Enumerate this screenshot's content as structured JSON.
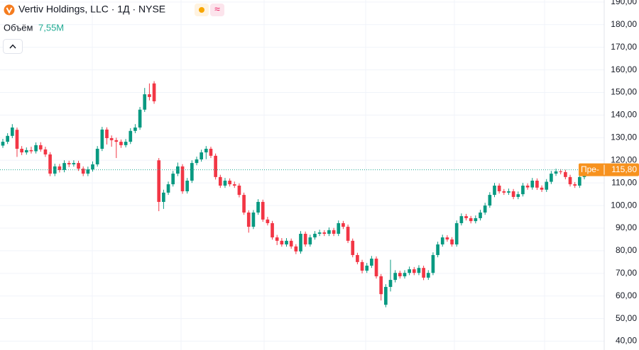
{
  "chart_data": {
    "type": "candlestick",
    "title": "Vertiv Holdings, LLC · 1Д · NYSE",
    "volume_label": "Объём",
    "volume_value": "7,55M",
    "last_price_tag": "Пре-",
    "last_price": {
      "value": 115.8,
      "label": "115,80"
    },
    "up_color": "#089981",
    "down_color": "#f23645",
    "ylim": [
      36.1,
      190.9
    ],
    "yticks": [
      {
        "value": 190,
        "label": "190,00"
      },
      {
        "value": 180,
        "label": "180,00"
      },
      {
        "value": 170,
        "label": "170,00"
      },
      {
        "value": 160,
        "label": "160,00"
      },
      {
        "value": 150,
        "label": "150,00"
      },
      {
        "value": 140,
        "label": "140,00"
      },
      {
        "value": 130,
        "label": "130,00"
      },
      {
        "value": 120,
        "label": "120,00"
      },
      {
        "value": 110,
        "label": "110,00"
      },
      {
        "value": 100,
        "label": "100,00"
      },
      {
        "value": 90,
        "label": "90,00"
      },
      {
        "value": 80,
        "label": "80,00"
      },
      {
        "value": 70,
        "label": "70,00"
      },
      {
        "value": 60,
        "label": "60,00"
      },
      {
        "value": 50,
        "label": "50,00"
      },
      {
        "value": 40,
        "label": "40,00"
      }
    ],
    "grid": true,
    "open": [
      126.5,
      128.2,
      130.8,
      133.5,
      125.1,
      123.5,
      124.5,
      124.0,
      126.7,
      124.8,
      122.6,
      114.1,
      117.3,
      115.7,
      118.8,
      118.2,
      118.8,
      116.3,
      114.1,
      116.0,
      118.2,
      125.1,
      133.6,
      129.8,
      128.9,
      128.2,
      126.7,
      128.2,
      133.0,
      134.5,
      142.4,
      149.2,
      154.0,
      120.0,
      101.6,
      105.7,
      109.4,
      114.1,
      117.3,
      106.3,
      111.0,
      118.8,
      120.4,
      123.5,
      125.1,
      122.0,
      112.6,
      108.8,
      111.0,
      109.4,
      108.8,
      104.7,
      96.9,
      90.6,
      96.9,
      101.6,
      93.8,
      92.2,
      85.9,
      84.4,
      82.8,
      84.4,
      81.9,
      79.7,
      87.5,
      82.8,
      85.9,
      87.5,
      88.1,
      87.5,
      89.1,
      87.5,
      92.2,
      90.6,
      84.4,
      78.1,
      75.0,
      71.2,
      73.4,
      76.5,
      68.7,
      56.1,
      64.0,
      67.1,
      70.2,
      68.7,
      70.2,
      71.8,
      70.2,
      72.4,
      68.1,
      70.2,
      78.1,
      82.8,
      85.9,
      85.0,
      82.8,
      92.2,
      95.3,
      94.4,
      93.1,
      94.4,
      96.9,
      100.0,
      104.7,
      108.8,
      106.3,
      105.7,
      106.3,
      103.8,
      105.0,
      108.8,
      108.0,
      111.0,
      107.9,
      107.0,
      110.5,
      114.1,
      115.1,
      114.8,
      112.6,
      109.4,
      108.8,
      112.6
    ],
    "high": [
      129.5,
      132,
      136,
      134.5,
      126.3,
      125.7,
      126,
      127.9,
      128,
      126,
      123.6,
      118.5,
      118.4,
      120,
      119.8,
      120,
      119.8,
      117.3,
      117.2,
      119.5,
      126.3,
      134.8,
      134.6,
      131,
      130,
      129.2,
      129.4,
      134.2,
      136,
      143.6,
      152,
      154,
      155,
      121,
      107,
      110.6,
      115.3,
      119,
      118.3,
      112.2,
      120,
      121.6,
      124.7,
      126.3,
      126,
      123,
      113.6,
      112.2,
      112,
      110.6,
      109.8,
      105.7,
      97.9,
      98,
      102.8,
      102.6,
      95,
      93.2,
      87,
      85.6,
      85.6,
      85.4,
      82.9,
      88.7,
      88.5,
      87.1,
      88.7,
      89.3,
      89.1,
      90.3,
      90.1,
      93.4,
      93.2,
      91.6,
      85.4,
      79.1,
      76,
      74.6,
      77.7,
      77.5,
      69.7,
      65.2,
      76,
      71.4,
      71.2,
      71.4,
      73,
      72.8,
      73.6,
      73.4,
      71.4,
      79.3,
      84,
      87.1,
      86.9,
      86,
      93.4,
      96.5,
      96.3,
      95.4,
      95.6,
      98.1,
      101.2,
      105.9,
      110,
      109.8,
      107.3,
      107.5,
      107.3,
      106.2,
      110,
      109.8,
      112.2,
      112,
      108.9,
      111.7,
      115.3,
      116.3,
      116.1,
      115.8,
      113.6,
      110.4,
      113.8,
      117
    ],
    "low": [
      125.5,
      127.2,
      129.8,
      121.5,
      122.3,
      122.5,
      123,
      123,
      123.8,
      121.5,
      113,
      113,
      114.6,
      114.7,
      117,
      117.2,
      115.3,
      113,
      113,
      115,
      117.2,
      124.1,
      127,
      126,
      121,
      125.5,
      125.7,
      127.2,
      132,
      133.5,
      141.4,
      146.5,
      145,
      97.5,
      98.5,
      104.7,
      108.4,
      113,
      105.2,
      105.3,
      110,
      117.8,
      119.4,
      120.5,
      121,
      111.5,
      107.8,
      107.8,
      108.4,
      107.8,
      103.6,
      95.9,
      88,
      89.6,
      95.9,
      92.8,
      91.2,
      84.9,
      82.5,
      81.8,
      81.8,
      80.9,
      78.5,
      78.7,
      81.8,
      81.8,
      84.9,
      86.5,
      86.5,
      86.5,
      86.5,
      86.5,
      89.6,
      83.4,
      77.1,
      74,
      70,
      70.2,
      72.4,
      67.7,
      58,
      55,
      62,
      66,
      67.7,
      67.7,
      69.2,
      69.2,
      69.2,
      67,
      67.1,
      69.2,
      77.1,
      81.8,
      84,
      81.8,
      81.8,
      91.2,
      93.4,
      92.1,
      92.1,
      93.4,
      95.9,
      99,
      103.7,
      105.3,
      104.7,
      104.7,
      102.8,
      102.8,
      104,
      107,
      107,
      106.9,
      106,
      106,
      109.5,
      113.1,
      113.8,
      111.6,
      108.4,
      107.8,
      107.8,
      111.6
    ],
    "close": [
      128.2,
      130.8,
      134.5,
      125.1,
      123.5,
      124.5,
      124.0,
      126.7,
      124.8,
      122.6,
      114.1,
      117.3,
      115.7,
      118.8,
      118.2,
      118.8,
      116.3,
      114.1,
      116.0,
      118.2,
      125.1,
      133.6,
      129.8,
      128.9,
      128.2,
      126.7,
      128.2,
      133.0,
      134.5,
      142.4,
      149.2,
      148.0,
      146.1,
      101.6,
      105.7,
      109.4,
      114.1,
      117.3,
      106.3,
      111.0,
      118.8,
      120.4,
      123.5,
      125.1,
      122.0,
      112.6,
      108.8,
      111.0,
      109.4,
      108.8,
      104.7,
      96.9,
      90.6,
      96.9,
      101.6,
      93.8,
      92.2,
      85.9,
      84.4,
      82.8,
      84.4,
      81.9,
      79.7,
      87.5,
      82.8,
      85.9,
      87.5,
      88.1,
      87.5,
      89.1,
      87.5,
      92.2,
      90.6,
      84.4,
      78.1,
      75.0,
      71.2,
      73.4,
      76.5,
      68.7,
      60.8,
      64.0,
      67.1,
      70.2,
      68.7,
      70.2,
      71.8,
      70.2,
      72.4,
      68.1,
      70.2,
      78.1,
      82.8,
      85.9,
      85.0,
      82.8,
      92.2,
      95.3,
      94.4,
      93.1,
      94.4,
      96.9,
      100.0,
      104.7,
      108.8,
      106.3,
      105.7,
      106.3,
      103.8,
      105.0,
      108.8,
      108.0,
      111.0,
      107.9,
      107.0,
      110.5,
      114.1,
      115.1,
      114.8,
      112.6,
      109.4,
      108.8,
      112.6,
      115.8
    ]
  }
}
